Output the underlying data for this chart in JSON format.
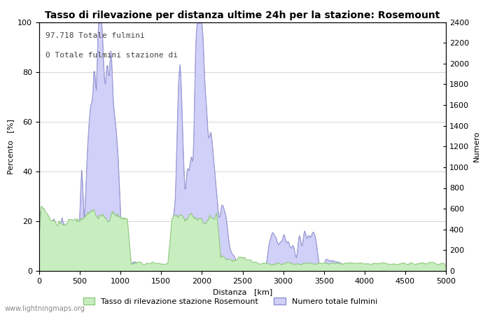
{
  "title": "Tasso di rilevazione per distanza ultime 24h per la stazione: Rosemount",
  "xlabel": "Distanza   [km]",
  "ylabel_left": "Percento   [%]",
  "ylabel_right": "Numero",
  "annotation_line1": "97.718 Totale fulmini",
  "annotation_line2": "0 Totale fulmini stazione di",
  "xlim": [
    0,
    5000
  ],
  "ylim_left": [
    0,
    100
  ],
  "ylim_right": [
    0,
    2400
  ],
  "xticks": [
    0,
    500,
    1000,
    1500,
    2000,
    2500,
    3000,
    3500,
    4000,
    4500,
    5000
  ],
  "yticks_left": [
    0,
    20,
    40,
    60,
    80,
    100
  ],
  "yticks_right": [
    0,
    200,
    400,
    600,
    800,
    1000,
    1200,
    1400,
    1600,
    1800,
    2000,
    2200,
    2400
  ],
  "legend_label_green": "Tasso di rilevazione stazione Rosemount",
  "legend_label_blue": "Numero totale fulmini",
  "watermark": "www.lightningmaps.org",
  "fill_green_color": "#c8eec0",
  "fill_green_edge": "#90c880",
  "fill_blue_color": "#d0d0f8",
  "fill_blue_edge": "#9090d0",
  "bg_color": "#ffffff",
  "grid_color": "#aaaaaa",
  "title_fontsize": 10,
  "axis_fontsize": 8,
  "tick_fontsize": 8,
  "annotation_fontsize": 8
}
